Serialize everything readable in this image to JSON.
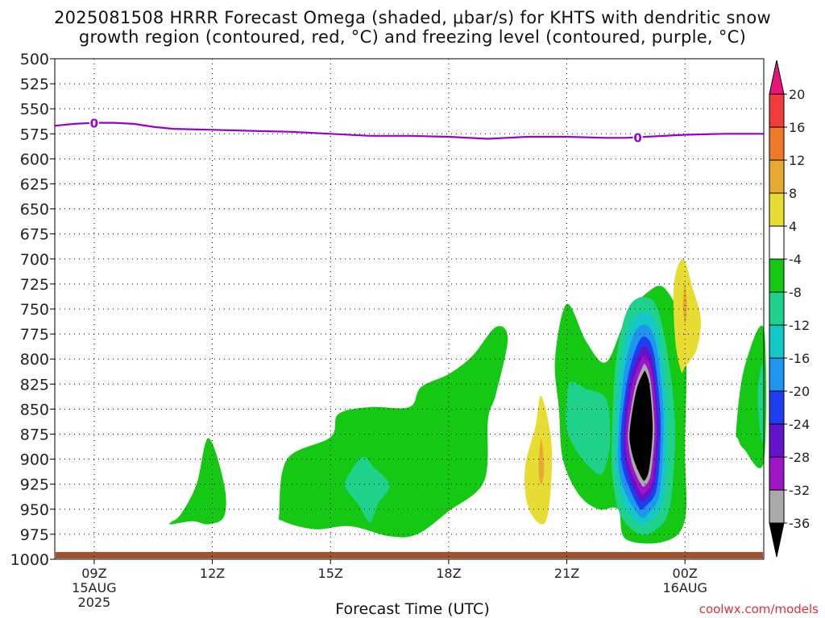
{
  "header": {
    "title_line1": "2025081508 HRRR Forecast Omega (shaded, μbar/s) for KHTS with dendritic snow",
    "title_line2": "growth region (contoured, red, °C) and freezing level (contoured, purple, °C)"
  },
  "footer": {
    "credit": "coolwx.com/models",
    "xlabel": "Forecast Time (UTC)"
  },
  "chart_data": {
    "type": "contour",
    "title": "2025081508 HRRR Forecast Omega (shaded, μbar/s) for KHTS with dendritic snow growth region (contoured, red, °C) and freezing level (contoured, purple, °C)",
    "xlabel": "Forecast Time (UTC)",
    "ylabel": "",
    "x_range_hours_utc": [
      8,
      26
    ],
    "y_range_hpa": [
      500,
      1000
    ],
    "y_inverted": true,
    "grid": true,
    "x_ticks": [
      {
        "hour": 9,
        "label": "09Z",
        "sub1": "15AUG",
        "sub2": "2025"
      },
      {
        "hour": 12,
        "label": "12Z",
        "sub1": "",
        "sub2": ""
      },
      {
        "hour": 15,
        "label": "15Z",
        "sub1": "",
        "sub2": ""
      },
      {
        "hour": 18,
        "label": "18Z",
        "sub1": "",
        "sub2": ""
      },
      {
        "hour": 21,
        "label": "21Z",
        "sub1": "",
        "sub2": ""
      },
      {
        "hour": 24,
        "label": "00Z",
        "sub1": "16AUG",
        "sub2": ""
      }
    ],
    "y_ticks": [
      500,
      525,
      550,
      575,
      600,
      625,
      650,
      675,
      700,
      725,
      750,
      775,
      800,
      825,
      850,
      875,
      900,
      925,
      950,
      975,
      1000
    ],
    "colorbar": {
      "levels": [
        "20",
        "16",
        "12",
        "8",
        "4",
        "-4",
        "-8",
        "-12",
        "-16",
        "-20",
        "-24",
        "-28",
        "-32",
        "-36"
      ],
      "colors": [
        "#e8147a",
        "#f03c3c",
        "#f0782a",
        "#e6aa32",
        "#e6dc32",
        "#ffffff",
        "#14c814",
        "#1ed28c",
        "#14c8c8",
        "#1e96f0",
        "#1e3cf0",
        "#6414c8",
        "#a014c8",
        "#aaaaaa",
        "#000000"
      ]
    },
    "freezing_level": {
      "label": "0",
      "hours": [
        8,
        8.5,
        9,
        9.5,
        10,
        10.5,
        11,
        12,
        13,
        14,
        15,
        16,
        17,
        18,
        19,
        20,
        21,
        22,
        22.5,
        23,
        24,
        25,
        26
      ],
      "pressure_hpa": [
        567,
        565,
        564,
        564,
        565,
        568,
        570,
        571,
        572,
        573,
        575,
        577,
        577,
        578,
        580,
        578,
        578,
        579,
        579,
        578,
        576,
        575,
        575
      ],
      "label_hours": [
        9,
        22.8
      ]
    },
    "regions": [
      {
        "name": "green-small",
        "value": "-4",
        "color": "#14c814",
        "points": [
          [
            10.95,
            963
          ],
          [
            11.2,
            955
          ],
          [
            11.6,
            925
          ],
          [
            11.9,
            879
          ],
          [
            12.3,
            925
          ],
          [
            12.3,
            957
          ],
          [
            11.9,
            965
          ],
          [
            11.5,
            962
          ],
          [
            10.95,
            965
          ]
        ]
      },
      {
        "name": "green-large",
        "value": "-4",
        "color": "#14c814",
        "points": [
          [
            13.7,
            953
          ],
          [
            13.9,
            900
          ],
          [
            15.0,
            878
          ],
          [
            15.2,
            855
          ],
          [
            16.0,
            848
          ],
          [
            17.0,
            848
          ],
          [
            17.3,
            828
          ],
          [
            18.0,
            815
          ],
          [
            18.6,
            797
          ],
          [
            19.2,
            768
          ],
          [
            19.5,
            780
          ],
          [
            19.2,
            835
          ],
          [
            19.0,
            860
          ],
          [
            18.9,
            922
          ],
          [
            18.0,
            952
          ],
          [
            17.2,
            975
          ],
          [
            16.5,
            977
          ],
          [
            15.5,
            967
          ],
          [
            14.6,
            970
          ],
          [
            13.8,
            962
          ]
        ]
      },
      {
        "name": "teal-inner",
        "value": "-8",
        "color": "#1ed28c",
        "points": [
          [
            15.4,
            920
          ],
          [
            15.8,
            898
          ],
          [
            16.1,
            908
          ],
          [
            16.5,
            926
          ],
          [
            16.2,
            945
          ],
          [
            16.0,
            963
          ],
          [
            15.7,
            945
          ],
          [
            15.4,
            930
          ]
        ]
      },
      {
        "name": "yellow-1",
        "value": "4",
        "color": "#e6dc32",
        "points": [
          [
            19.95,
            905
          ],
          [
            20.2,
            868
          ],
          [
            20.35,
            837
          ],
          [
            20.6,
            880
          ],
          [
            20.6,
            925
          ],
          [
            20.5,
            958
          ],
          [
            20.35,
            965
          ],
          [
            20.1,
            955
          ],
          [
            19.95,
            935
          ]
        ]
      },
      {
        "name": "orange-1",
        "value": "8",
        "color": "#e6aa32",
        "points": [
          [
            20.28,
            910
          ],
          [
            20.35,
            880
          ],
          [
            20.42,
            910
          ],
          [
            20.35,
            925
          ]
        ]
      },
      {
        "name": "green-right",
        "value": "-4",
        "color": "#14c814",
        "points": [
          [
            20.8,
            850
          ],
          [
            20.7,
            800
          ],
          [
            21.0,
            745
          ],
          [
            21.5,
            783
          ],
          [
            22.0,
            803
          ],
          [
            22.5,
            760
          ],
          [
            23.0,
            735
          ],
          [
            23.5,
            730
          ],
          [
            24.0,
            780
          ],
          [
            24.0,
            890
          ],
          [
            24.0,
            960
          ],
          [
            23.5,
            982
          ],
          [
            22.5,
            980
          ],
          [
            22.3,
            950
          ],
          [
            21.8,
            950
          ],
          [
            21.3,
            935
          ],
          [
            20.9,
            900
          ]
        ]
      },
      {
        "name": "teal-right",
        "value": "-8",
        "color": "#1ed28c",
        "points": [
          [
            21.0,
            840
          ],
          [
            21.1,
            823
          ],
          [
            21.5,
            830
          ],
          [
            22.0,
            840
          ],
          [
            22.1,
            880
          ],
          [
            22.0,
            905
          ],
          [
            21.8,
            915
          ],
          [
            21.3,
            895
          ],
          [
            21.0,
            870
          ]
        ]
      },
      {
        "name": "teal-core",
        "value": "-8",
        "color": "#1ed28c",
        "points": [
          [
            22.15,
            870
          ],
          [
            22.25,
            800
          ],
          [
            22.55,
            750
          ],
          [
            23.0,
            738
          ],
          [
            23.35,
            755
          ],
          [
            23.65,
            820
          ],
          [
            23.75,
            880
          ],
          [
            23.6,
            950
          ],
          [
            23.2,
            972
          ],
          [
            22.8,
            974
          ],
          [
            22.35,
            955
          ],
          [
            22.15,
            915
          ]
        ]
      },
      {
        "name": "cyan-core",
        "value": "-12",
        "color": "#14c8c8",
        "points": [
          [
            22.25,
            870
          ],
          [
            22.35,
            810
          ],
          [
            22.6,
            765
          ],
          [
            23.0,
            753
          ],
          [
            23.3,
            770
          ],
          [
            23.5,
            830
          ],
          [
            23.55,
            880
          ],
          [
            23.45,
            940
          ],
          [
            23.1,
            962
          ],
          [
            22.8,
            964
          ],
          [
            22.45,
            945
          ],
          [
            22.25,
            910
          ]
        ]
      },
      {
        "name": "blue-core",
        "value": "-16",
        "color": "#1e96f0",
        "points": [
          [
            22.32,
            870
          ],
          [
            22.45,
            815
          ],
          [
            22.7,
            775
          ],
          [
            23.0,
            766
          ],
          [
            23.25,
            782
          ],
          [
            23.42,
            835
          ],
          [
            23.45,
            880
          ],
          [
            23.35,
            935
          ],
          [
            23.05,
            955
          ],
          [
            22.85,
            957
          ],
          [
            22.5,
            935
          ],
          [
            22.32,
            910
          ]
        ]
      },
      {
        "name": "darkblue-core",
        "value": "-20",
        "color": "#1e3cf0",
        "points": [
          [
            22.38,
            870
          ],
          [
            22.55,
            818
          ],
          [
            22.8,
            785
          ],
          [
            23.0,
            778
          ],
          [
            23.2,
            793
          ],
          [
            23.35,
            840
          ],
          [
            23.38,
            880
          ],
          [
            23.28,
            930
          ],
          [
            23.0,
            947
          ],
          [
            22.85,
            949
          ],
          [
            22.58,
            928
          ],
          [
            22.4,
            905
          ]
        ]
      },
      {
        "name": "violet-core",
        "value": "-24",
        "color": "#6414c8",
        "points": [
          [
            22.45,
            870
          ],
          [
            22.6,
            822
          ],
          [
            22.85,
            793
          ],
          [
            23.0,
            788
          ],
          [
            23.18,
            803
          ],
          [
            23.3,
            845
          ],
          [
            23.32,
            880
          ],
          [
            23.22,
            925
          ],
          [
            23.0,
            940
          ],
          [
            22.85,
            941
          ],
          [
            22.62,
            922
          ],
          [
            22.47,
            900
          ]
        ]
      },
      {
        "name": "purple-core",
        "value": "-28",
        "color": "#a014c8",
        "points": [
          [
            22.5,
            870
          ],
          [
            22.66,
            826
          ],
          [
            22.88,
            801
          ],
          [
            23.0,
            798
          ],
          [
            23.15,
            812
          ],
          [
            23.26,
            850
          ],
          [
            23.27,
            880
          ],
          [
            23.18,
            920
          ],
          [
            23.0,
            933
          ],
          [
            22.87,
            933
          ],
          [
            22.66,
            915
          ],
          [
            22.52,
            895
          ]
        ]
      },
      {
        "name": "gray-core",
        "value": "-32",
        "color": "#aaaaaa",
        "points": [
          [
            22.56,
            870
          ],
          [
            22.72,
            830
          ],
          [
            22.92,
            808
          ],
          [
            23.0,
            806
          ],
          [
            23.12,
            820
          ],
          [
            23.21,
            855
          ],
          [
            23.22,
            880
          ],
          [
            23.13,
            915
          ],
          [
            23.0,
            926
          ],
          [
            22.9,
            926
          ],
          [
            22.7,
            910
          ],
          [
            22.58,
            890
          ]
        ]
      },
      {
        "name": "black-core",
        "value": "-36",
        "color": "#000000",
        "points": [
          [
            22.6,
            870
          ],
          [
            22.76,
            832
          ],
          [
            22.94,
            814
          ],
          [
            23.0,
            813
          ],
          [
            23.1,
            826
          ],
          [
            23.17,
            858
          ],
          [
            23.17,
            880
          ],
          [
            23.09,
            910
          ],
          [
            23.0,
            920
          ],
          [
            22.92,
            920
          ],
          [
            22.74,
            905
          ],
          [
            22.62,
            888
          ]
        ]
      },
      {
        "name": "yellow-2",
        "value": "4",
        "color": "#e6dc32",
        "points": [
          [
            23.75,
            780
          ],
          [
            23.72,
            725
          ],
          [
            23.95,
            700
          ],
          [
            24.2,
            730
          ],
          [
            24.4,
            760
          ],
          [
            24.3,
            790
          ],
          [
            24.0,
            808
          ],
          [
            23.9,
            812
          ]
        ]
      },
      {
        "name": "orange-2",
        "value": "8",
        "color": "#e6aa32",
        "points": [
          [
            23.95,
            745
          ],
          [
            24.0,
            725
          ],
          [
            24.05,
            748
          ],
          [
            24.0,
            765
          ]
        ]
      },
      {
        "name": "green-edge",
        "value": "-4",
        "color": "#14c814",
        "points": [
          [
            25.3,
            870
          ],
          [
            25.5,
            810
          ],
          [
            26.0,
            770
          ],
          [
            26.0,
            902
          ],
          [
            25.5,
            890
          ],
          [
            25.35,
            880
          ]
        ]
      },
      {
        "name": "teal-edge",
        "value": "-8",
        "color": "#1ed28c",
        "points": [
          [
            25.85,
            830
          ],
          [
            26.0,
            805
          ],
          [
            26.0,
            880
          ],
          [
            25.9,
            870
          ]
        ]
      }
    ]
  }
}
